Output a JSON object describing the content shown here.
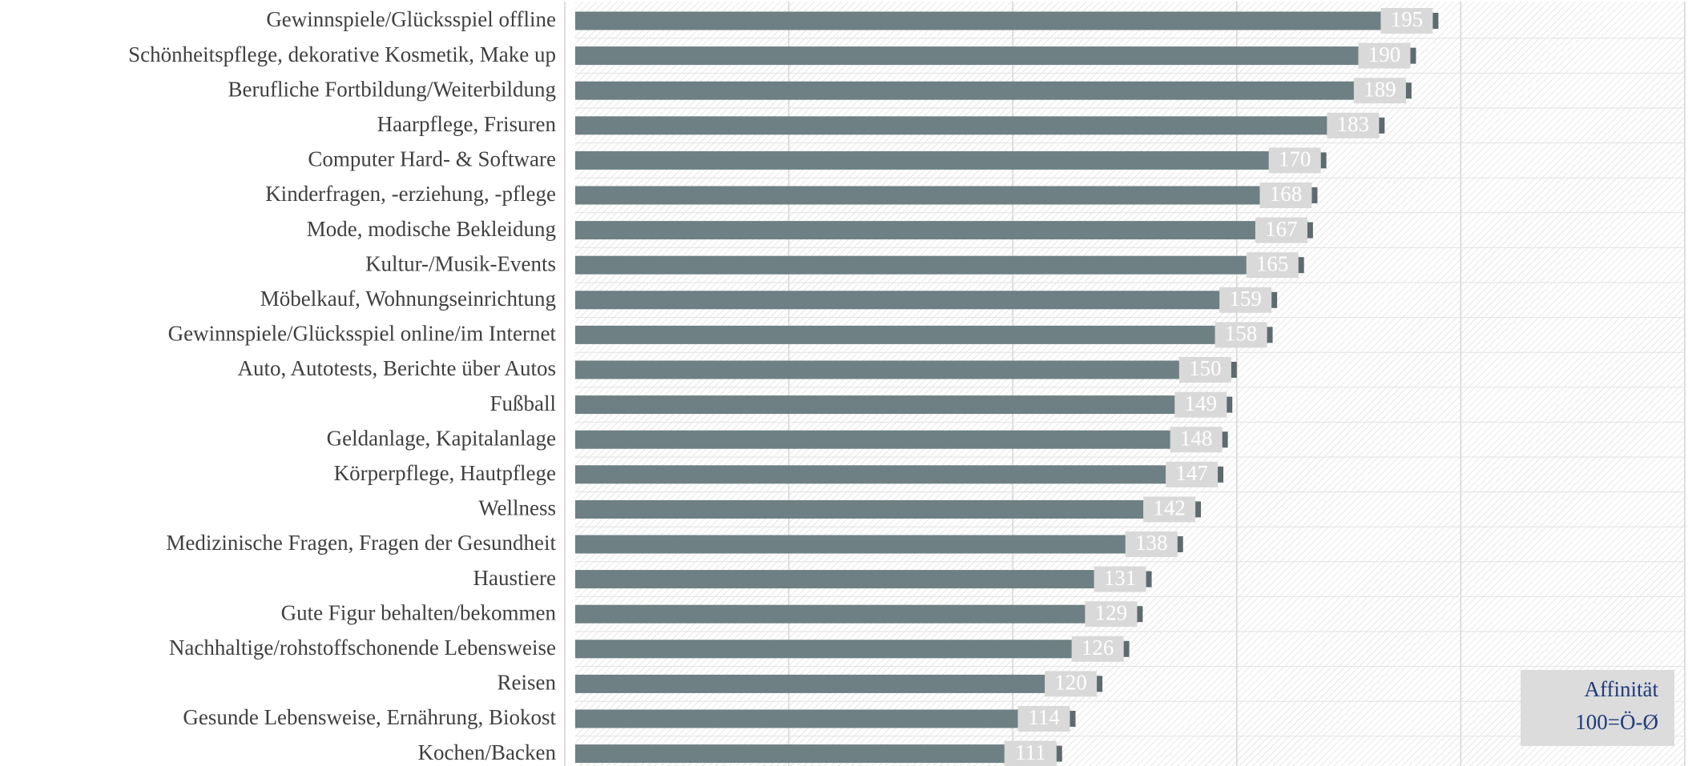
{
  "chart_data": {
    "type": "barh",
    "categories": [
      "Gewinnspiele/Glücksspiel offline",
      "Schönheitspflege, dekorative Kosmetik, Make up",
      "Berufliche Fortbildung/Weiterbildung",
      "Haarpflege, Frisuren",
      "Computer Hard- & Software",
      "Kinderfragen, -erziehung, -pflege",
      "Mode, modische Bekleidung",
      "Kultur-/Musik-Events",
      "Möbelkauf, Wohnungseinrichtung",
      "Gewinnspiele/Glücksspiel online/im Internet",
      "Auto, Autotests, Berichte über Autos",
      "Fußball",
      "Geldanlage, Kapitalanlage",
      "Körperpflege, Hautpflege",
      "Wellness",
      "Medizinische Fragen, Fragen der Gesundheit",
      "Haustiere",
      "Gute Figur behalten/bekommen",
      "Nachhaltige/rohstoffschonende Lebensweise",
      "Reisen",
      "Gesunde Lebensweise, Ernährung, Biokost",
      "Kochen/Backen"
    ],
    "values": [
      195,
      190,
      189,
      183,
      170,
      168,
      167,
      165,
      159,
      158,
      150,
      149,
      148,
      147,
      142,
      138,
      131,
      129,
      126,
      120,
      114,
      111
    ],
    "color": "#6e8083",
    "xlim": [
      0,
      250
    ],
    "xticks": [
      0,
      50,
      100,
      150,
      200,
      250
    ],
    "grid": true,
    "annotation": [
      "Affinität",
      "100=Ö-Ø"
    ]
  }
}
